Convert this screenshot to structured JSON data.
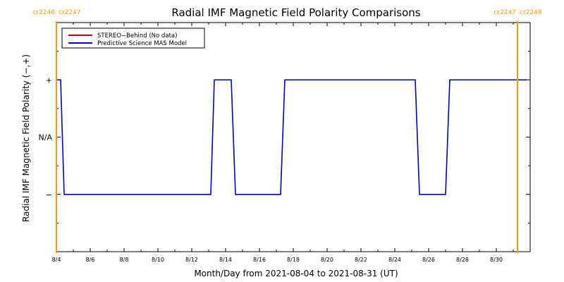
{
  "chart_data": {
    "type": "line",
    "title": "Radial IMF Magnetic Field Polarity Comparisons",
    "xlabel": "Month/Day from 2021-08-04 to 2021-08-31 (UT)",
    "ylabel": "Radial IMF Magnetic Field Polarity (−,+)",
    "x_range": [
      "2021-08-04",
      "2021-09-01"
    ],
    "x_ticks": [
      {
        "date": "2021-08-04",
        "label": "8/4"
      },
      {
        "date": "2021-08-06",
        "label": "8/6"
      },
      {
        "date": "2021-08-08",
        "label": "8/8"
      },
      {
        "date": "2021-08-10",
        "label": "8/10"
      },
      {
        "date": "2021-08-12",
        "label": "8/12"
      },
      {
        "date": "2021-08-14",
        "label": "8/14"
      },
      {
        "date": "2021-08-16",
        "label": "8/16"
      },
      {
        "date": "2021-08-18",
        "label": "8/18"
      },
      {
        "date": "2021-08-20",
        "label": "8/20"
      },
      {
        "date": "2021-08-22",
        "label": "8/22"
      },
      {
        "date": "2021-08-24",
        "label": "8/24"
      },
      {
        "date": "2021-08-26",
        "label": "8/26"
      },
      {
        "date": "2021-08-28",
        "label": "8/28"
      },
      {
        "date": "2021-08-30",
        "label": "8/30"
      }
    ],
    "y_levels": [
      {
        "value": 1,
        "label": "+"
      },
      {
        "value": 0,
        "label": "N/A"
      },
      {
        "value": -1,
        "label": "−"
      }
    ],
    "ylim": [
      -2,
      2
    ],
    "legend": {
      "placement": "top-left",
      "entries": [
        {
          "name": "STEREO−Behind (No data)",
          "color": "#cc0000"
        },
        {
          "name": "Predictive Science MAS Model",
          "color": "#0000cc"
        }
      ]
    },
    "series": [
      {
        "name": "Predictive Science MAS Model",
        "color": "#0000cc",
        "points": [
          {
            "x": "2021-08-04T00:00",
            "y": 1
          },
          {
            "x": "2021-08-04T06:00",
            "y": 1
          },
          {
            "x": "2021-08-04T11:00",
            "y": -1
          },
          {
            "x": "2021-08-13T03:00",
            "y": -1
          },
          {
            "x": "2021-08-13T08:00",
            "y": 1
          },
          {
            "x": "2021-08-14T08:00",
            "y": 1
          },
          {
            "x": "2021-08-14T14:00",
            "y": -1
          },
          {
            "x": "2021-08-17T06:00",
            "y": -1
          },
          {
            "x": "2021-08-17T12:00",
            "y": 1
          },
          {
            "x": "2021-08-25T05:00",
            "y": 1
          },
          {
            "x": "2021-08-25T11:00",
            "y": -1
          },
          {
            "x": "2021-08-27T00:00",
            "y": -1
          },
          {
            "x": "2021-08-27T06:00",
            "y": 1
          },
          {
            "x": "2021-08-31T19:00",
            "y": 1
          }
        ]
      }
    ],
    "carrington_markers": [
      {
        "date": "2021-08-04T00:00",
        "left_label": "cr2246",
        "right_label": "cr2247",
        "side": "left"
      },
      {
        "date": "2021-08-31T06:00",
        "left_label": "cr2247",
        "right_label": "cr2248",
        "side": "right"
      }
    ],
    "marker_color": "#ff9900"
  }
}
